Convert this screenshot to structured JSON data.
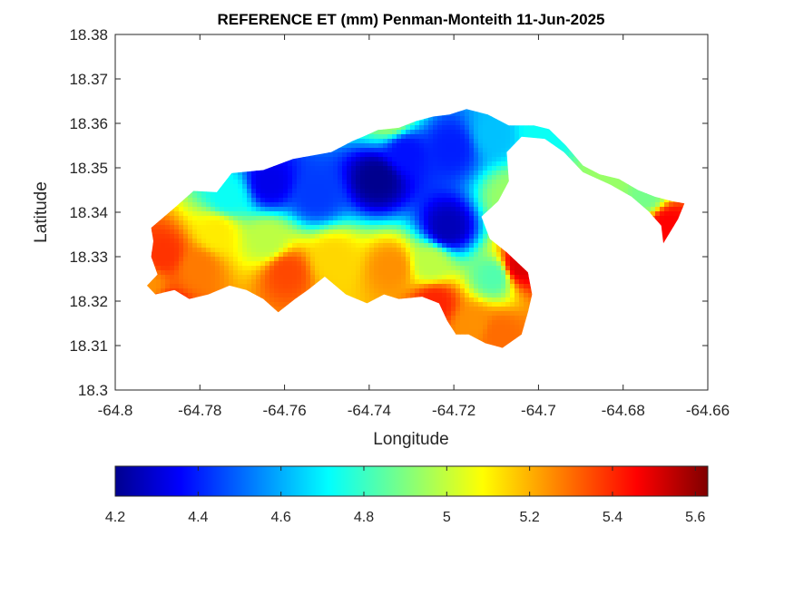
{
  "chart_data": {
    "type": "heatmap",
    "title": "REFERENCE ET (mm) Penman-Monteith 11-Jun-2025",
    "xlabel": "Longitude",
    "ylabel": "Latitude",
    "xlim": [
      -64.8,
      -64.66
    ],
    "ylim": [
      18.3,
      18.38
    ],
    "x_ticks": [
      -64.8,
      -64.78,
      -64.76,
      -64.74,
      -64.72,
      -64.7,
      -64.68,
      -64.66
    ],
    "x_tick_labels": [
      "-64.8",
      "-64.78",
      "-64.76",
      "-64.74",
      "-64.72",
      "-64.7",
      "-64.68",
      "-64.66"
    ],
    "y_ticks": [
      18.3,
      18.31,
      18.32,
      18.33,
      18.34,
      18.35,
      18.36,
      18.37,
      18.38
    ],
    "y_tick_labels": [
      "18.3",
      "18.31",
      "18.32",
      "18.33",
      "18.34",
      "18.35",
      "18.36",
      "18.37",
      "18.38"
    ],
    "grid": false,
    "colormap": "jet",
    "colorbar": {
      "orientation": "horizontal",
      "placement": "bottom",
      "range": [
        4.2,
        5.63
      ],
      "ticks": [
        4.2,
        4.4,
        4.6,
        4.8,
        5.0,
        5.2,
        5.4,
        5.6
      ],
      "tick_labels": [
        "4.2",
        "4.4",
        "4.6",
        "4.8",
        "5",
        "5.2",
        "5.4",
        "5.6"
      ]
    },
    "region_outline": [
      [
        -64.7925,
        18.3235
      ],
      [
        -64.79,
        18.326
      ],
      [
        -64.7915,
        18.33
      ],
      [
        -64.791,
        18.3335
      ],
      [
        -64.7915,
        18.3365
      ],
      [
        -64.786,
        18.341
      ],
      [
        -64.7815,
        18.3448
      ],
      [
        -64.776,
        18.3445
      ],
      [
        -64.7725,
        18.3488
      ],
      [
        -64.765,
        18.3495
      ],
      [
        -64.758,
        18.352
      ],
      [
        -64.749,
        18.3535
      ],
      [
        -64.744,
        18.356
      ],
      [
        -64.741,
        18.3572
      ],
      [
        -64.738,
        18.3585
      ],
      [
        -64.733,
        18.359
      ],
      [
        -64.729,
        18.3605
      ],
      [
        -64.725,
        18.3615
      ],
      [
        -64.721,
        18.362
      ],
      [
        -64.717,
        18.3632
      ],
      [
        -64.712,
        18.362
      ],
      [
        -64.707,
        18.3595
      ],
      [
        -64.701,
        18.3595
      ],
      [
        -64.6975,
        18.3587
      ],
      [
        -64.6935,
        18.355
      ],
      [
        -64.6895,
        18.3505
      ],
      [
        -64.6855,
        18.3485
      ],
      [
        -64.681,
        18.3475
      ],
      [
        -64.6765,
        18.345
      ],
      [
        -64.6725,
        18.3435
      ],
      [
        -64.6685,
        18.3425
      ],
      [
        -64.6655,
        18.342
      ],
      [
        -64.667,
        18.3385
      ],
      [
        -64.6705,
        18.333
      ],
      [
        -64.671,
        18.337
      ],
      [
        -64.674,
        18.3402
      ],
      [
        -64.678,
        18.3435
      ],
      [
        -64.683,
        18.3462
      ],
      [
        -64.6895,
        18.349
      ],
      [
        -64.694,
        18.3535
      ],
      [
        -64.6985,
        18.3565
      ],
      [
        -64.704,
        18.357
      ],
      [
        -64.7075,
        18.3535
      ],
      [
        -64.707,
        18.347
      ],
      [
        -64.7095,
        18.3425
      ],
      [
        -64.7135,
        18.339
      ],
      [
        -64.7115,
        18.334
      ],
      [
        -64.7075,
        18.331
      ],
      [
        -64.7025,
        18.3265
      ],
      [
        -64.7015,
        18.3215
      ],
      [
        -64.7025,
        18.3175
      ],
      [
        -64.704,
        18.3125
      ],
      [
        -64.7085,
        18.3095
      ],
      [
        -64.7125,
        18.3105
      ],
      [
        -64.7165,
        18.3125
      ],
      [
        -64.7195,
        18.3125
      ],
      [
        -64.7215,
        18.3155
      ],
      [
        -64.7235,
        18.3195
      ],
      [
        -64.7275,
        18.321
      ],
      [
        -64.733,
        18.3205
      ],
      [
        -64.7365,
        18.3215
      ],
      [
        -64.7405,
        18.3195
      ],
      [
        -64.7455,
        18.3215
      ],
      [
        -64.7505,
        18.3255
      ],
      [
        -64.7545,
        18.3225
      ],
      [
        -64.7575,
        18.3205
      ],
      [
        -64.7615,
        18.3175
      ],
      [
        -64.765,
        18.3205
      ],
      [
        -64.769,
        18.3225
      ],
      [
        -64.773,
        18.3235
      ],
      [
        -64.778,
        18.3215
      ],
      [
        -64.7825,
        18.3205
      ],
      [
        -64.786,
        18.3225
      ],
      [
        -64.7905,
        18.3215
      ]
    ],
    "values": [
      {
        "lon": -64.7885,
        "lat": 18.3305,
        "et": 5.38
      },
      {
        "lon": -64.7805,
        "lat": 18.3275,
        "et": 5.28
      },
      {
        "lon": -64.776,
        "lat": 18.3355,
        "et": 5.12
      },
      {
        "lon": -64.7735,
        "lat": 18.3435,
        "et": 4.75
      },
      {
        "lon": -64.7635,
        "lat": 18.3465,
        "et": 4.35
      },
      {
        "lon": -64.7525,
        "lat": 18.3438,
        "et": 4.46
      },
      {
        "lon": -64.738,
        "lat": 18.3475,
        "et": 4.22
      },
      {
        "lon": -64.7315,
        "lat": 18.3535,
        "et": 4.4
      },
      {
        "lon": -64.7205,
        "lat": 18.3545,
        "et": 4.42
      },
      {
        "lon": -64.7215,
        "lat": 18.3365,
        "et": 4.28
      },
      {
        "lon": -64.7105,
        "lat": 18.3575,
        "et": 4.65
      },
      {
        "lon": -64.735,
        "lat": 18.361,
        "et": 4.95
      },
      {
        "lon": -64.741,
        "lat": 18.369,
        "et": 5.3
      },
      {
        "lon": -64.764,
        "lat": 18.3335,
        "et": 5.0
      },
      {
        "lon": -64.7595,
        "lat": 18.3265,
        "et": 5.35
      },
      {
        "lon": -64.7485,
        "lat": 18.3295,
        "et": 5.15
      },
      {
        "lon": -64.7345,
        "lat": 18.3275,
        "et": 5.25
      },
      {
        "lon": -64.7255,
        "lat": 18.3285,
        "et": 5.0
      },
      {
        "lon": -64.7105,
        "lat": 18.3255,
        "et": 4.85
      },
      {
        "lon": -64.7045,
        "lat": 18.328,
        "et": 5.5
      },
      {
        "lon": -64.7155,
        "lat": 18.3145,
        "et": 5.25
      },
      {
        "lon": -64.7245,
        "lat": 18.3195,
        "et": 5.4
      },
      {
        "lon": -64.7095,
        "lat": 18.3125,
        "et": 5.3
      },
      {
        "lon": -64.6995,
        "lat": 18.3585,
        "et": 4.75
      },
      {
        "lon": -64.6835,
        "lat": 18.3465,
        "et": 4.95
      },
      {
        "lon": -64.6745,
        "lat": 18.3435,
        "et": 4.9
      },
      {
        "lon": -64.6695,
        "lat": 18.3375,
        "et": 5.45
      },
      {
        "lon": -64.7925,
        "lat": 18.3235,
        "et": 5.25
      },
      {
        "lon": -64.7885,
        "lat": 18.3175,
        "et": 5.45
      },
      {
        "lon": -64.7065,
        "lat": 18.3435,
        "et": 4.95
      }
    ]
  }
}
